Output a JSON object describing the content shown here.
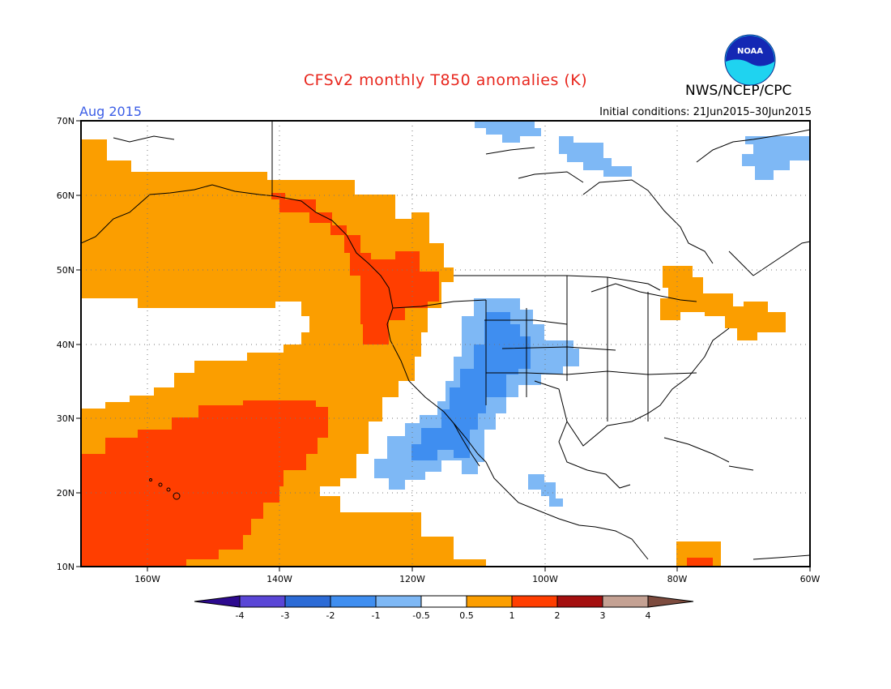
{
  "header": {
    "title": "CFSv2 monthly T850 anomalies (K)",
    "period": "Aug 2015",
    "org": "NWS/NCEP/CPC",
    "initial_conditions": "Initial conditions: 21Jun2015–30Jun2015",
    "logo_text": "NOAA"
  },
  "axes": {
    "lat_ticks": [
      "70N",
      "60N",
      "50N",
      "40N",
      "30N",
      "20N",
      "10N"
    ],
    "lon_ticks": [
      "160W",
      "140W",
      "120W",
      "100W",
      "80W",
      "60W"
    ]
  },
  "colorbar": {
    "labels": [
      "-4",
      "-3",
      "-2",
      "-1",
      "-0.5",
      "0.5",
      "1",
      "2",
      "3",
      "4"
    ],
    "colors": [
      "#2d0a8f",
      "#5a46d6",
      "#2c6bd6",
      "#3f8ef0",
      "#7eb8f5",
      "#ffffff",
      "#fb9e00",
      "#ff3e00",
      "#a40f0f",
      "#c4a193",
      "#7d4b3e"
    ]
  },
  "legend_categories": {
    "warm_0_5_to_1": "#fb9e00",
    "warm_1_to_2": "#ff3e00",
    "cool_neg1_to_neg0_5": "#7eb8f5",
    "cool_neg2_to_neg1": "#3f8ef0"
  }
}
